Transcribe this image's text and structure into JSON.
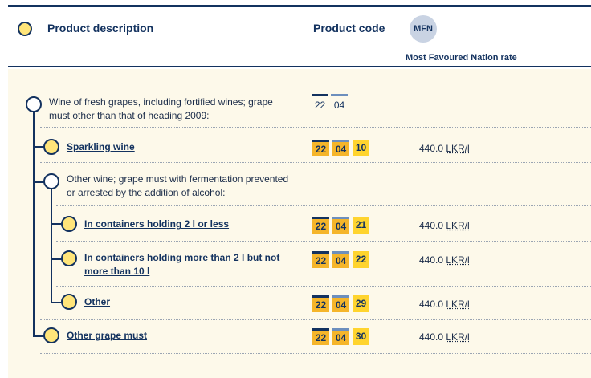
{
  "header": {
    "product_description": "Product description",
    "product_code": "Product code",
    "mfn_badge": "MFN",
    "mfn_label": "Most Favoured Nation rate"
  },
  "rows": [
    {
      "description": "Wine of fresh grapes, including fortified wines; grape must other than that of heading 2009:",
      "link": false,
      "code": [
        "22",
        "04"
      ],
      "rate": "",
      "unit": ""
    },
    {
      "description": "Sparkling wine",
      "link": true,
      "code": [
        "22",
        "04",
        "10"
      ],
      "rate": "440.0",
      "unit": "LKR/l"
    },
    {
      "description": "Other wine; grape must with fermentation prevented or arrested by the addition of alcohol:",
      "link": false,
      "code": [],
      "rate": "",
      "unit": ""
    },
    {
      "description": "In containers holding 2 l or less",
      "link": true,
      "code": [
        "22",
        "04",
        "21"
      ],
      "rate": "440.0",
      "unit": "LKR/l"
    },
    {
      "description": "In containers holding more than 2 l but not more than 10 l",
      "link": true,
      "code": [
        "22",
        "04",
        "22"
      ],
      "rate": "440.0",
      "unit": "LKR/l"
    },
    {
      "description": "Other",
      "link": true,
      "code": [
        "22",
        "04",
        "29"
      ],
      "rate": "440.0",
      "unit": "LKR/l"
    },
    {
      "description": "Other grape must",
      "link": true,
      "code": [
        "22",
        "04",
        "30"
      ],
      "rate": "440.0",
      "unit": "LKR/l"
    }
  ]
}
